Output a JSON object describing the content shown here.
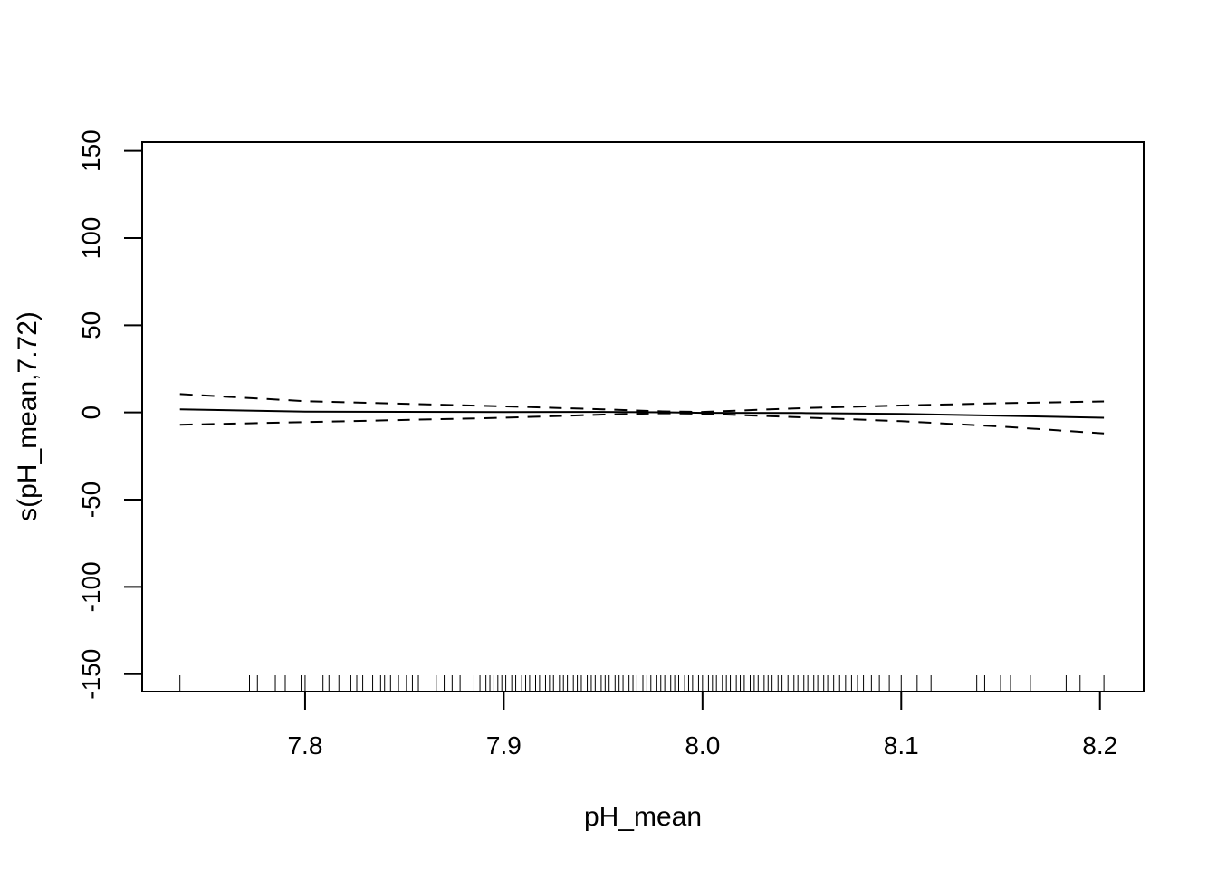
{
  "chart_data": {
    "type": "line",
    "title": "",
    "xlabel": "pH_mean",
    "ylabel": "s(pH_mean,7.72)",
    "xlim": [
      7.718,
      8.222
    ],
    "ylim": [
      -160,
      155
    ],
    "x_ticks": [
      7.8,
      7.9,
      8.0,
      8.1,
      8.2
    ],
    "x_tick_labels": [
      "7.8",
      "7.9",
      "8.0",
      "8.1",
      "8.2"
    ],
    "y_ticks": [
      -150,
      -100,
      -50,
      0,
      50,
      100,
      150
    ],
    "y_tick_labels": [
      "-150",
      "-100",
      "-50",
      "0",
      "50",
      "100",
      "150"
    ],
    "grid": false,
    "legend": "none",
    "series": [
      {
        "style": "solid",
        "x": [
          7.737,
          7.8,
          7.9,
          7.95,
          7.98,
          8.0,
          8.05,
          8.1,
          8.15,
          8.202
        ],
        "y": [
          1.8,
          0.5,
          0.2,
          0.3,
          0.1,
          -0.2,
          -0.3,
          -0.8,
          -1.8,
          -3.0
        ]
      },
      {
        "style": "dashed",
        "x": [
          7.737,
          7.8,
          7.9,
          7.95,
          7.98,
          8.0,
          8.05,
          8.1,
          8.15,
          8.202
        ],
        "y": [
          10.5,
          6.5,
          3.5,
          1.8,
          0.6,
          0.3,
          2.5,
          4.0,
          5.3,
          6.3
        ]
      },
      {
        "style": "dashed",
        "x": [
          7.737,
          7.8,
          7.9,
          7.95,
          7.98,
          8.0,
          8.05,
          8.1,
          8.15,
          8.202
        ],
        "y": [
          -7.0,
          -5.5,
          -3.0,
          -1.2,
          -0.4,
          -0.7,
          -2.8,
          -5.0,
          -8.0,
          -12.0
        ]
      }
    ],
    "rug": [
      7.737,
      7.772,
      7.776,
      7.785,
      7.79,
      7.798,
      7.8,
      7.809,
      7.812,
      7.817,
      7.823,
      7.826,
      7.829,
      7.834,
      7.838,
      7.84,
      7.843,
      7.847,
      7.851,
      7.854,
      7.857,
      7.866,
      7.87,
      7.874,
      7.878,
      7.885,
      7.888,
      7.891,
      7.893,
      7.895,
      7.897,
      7.899,
      7.901,
      7.904,
      7.906,
      7.909,
      7.911,
      7.913,
      7.916,
      7.918,
      7.921,
      7.923,
      7.925,
      7.928,
      7.93,
      7.932,
      7.935,
      7.937,
      7.939,
      7.942,
      7.944,
      7.946,
      7.949,
      7.951,
      7.953,
      7.956,
      7.958,
      7.96,
      7.963,
      7.965,
      7.967,
      7.97,
      7.972,
      7.974,
      7.977,
      7.979,
      7.981,
      7.984,
      7.986,
      7.988,
      7.991,
      7.993,
      7.995,
      7.998,
      8.0,
      8.003,
      8.005,
      8.007,
      8.01,
      8.012,
      8.014,
      8.017,
      8.019,
      8.021,
      8.024,
      8.026,
      8.028,
      8.031,
      8.033,
      8.035,
      8.038,
      8.04,
      8.043,
      8.046,
      8.048,
      8.051,
      8.053,
      8.056,
      8.058,
      8.061,
      8.063,
      8.066,
      8.069,
      8.072,
      8.075,
      8.078,
      8.081,
      8.085,
      8.089,
      8.094,
      8.1,
      8.108,
      8.115,
      8.138,
      8.142,
      8.15,
      8.155,
      8.165,
      8.183,
      8.19,
      8.202
    ]
  }
}
